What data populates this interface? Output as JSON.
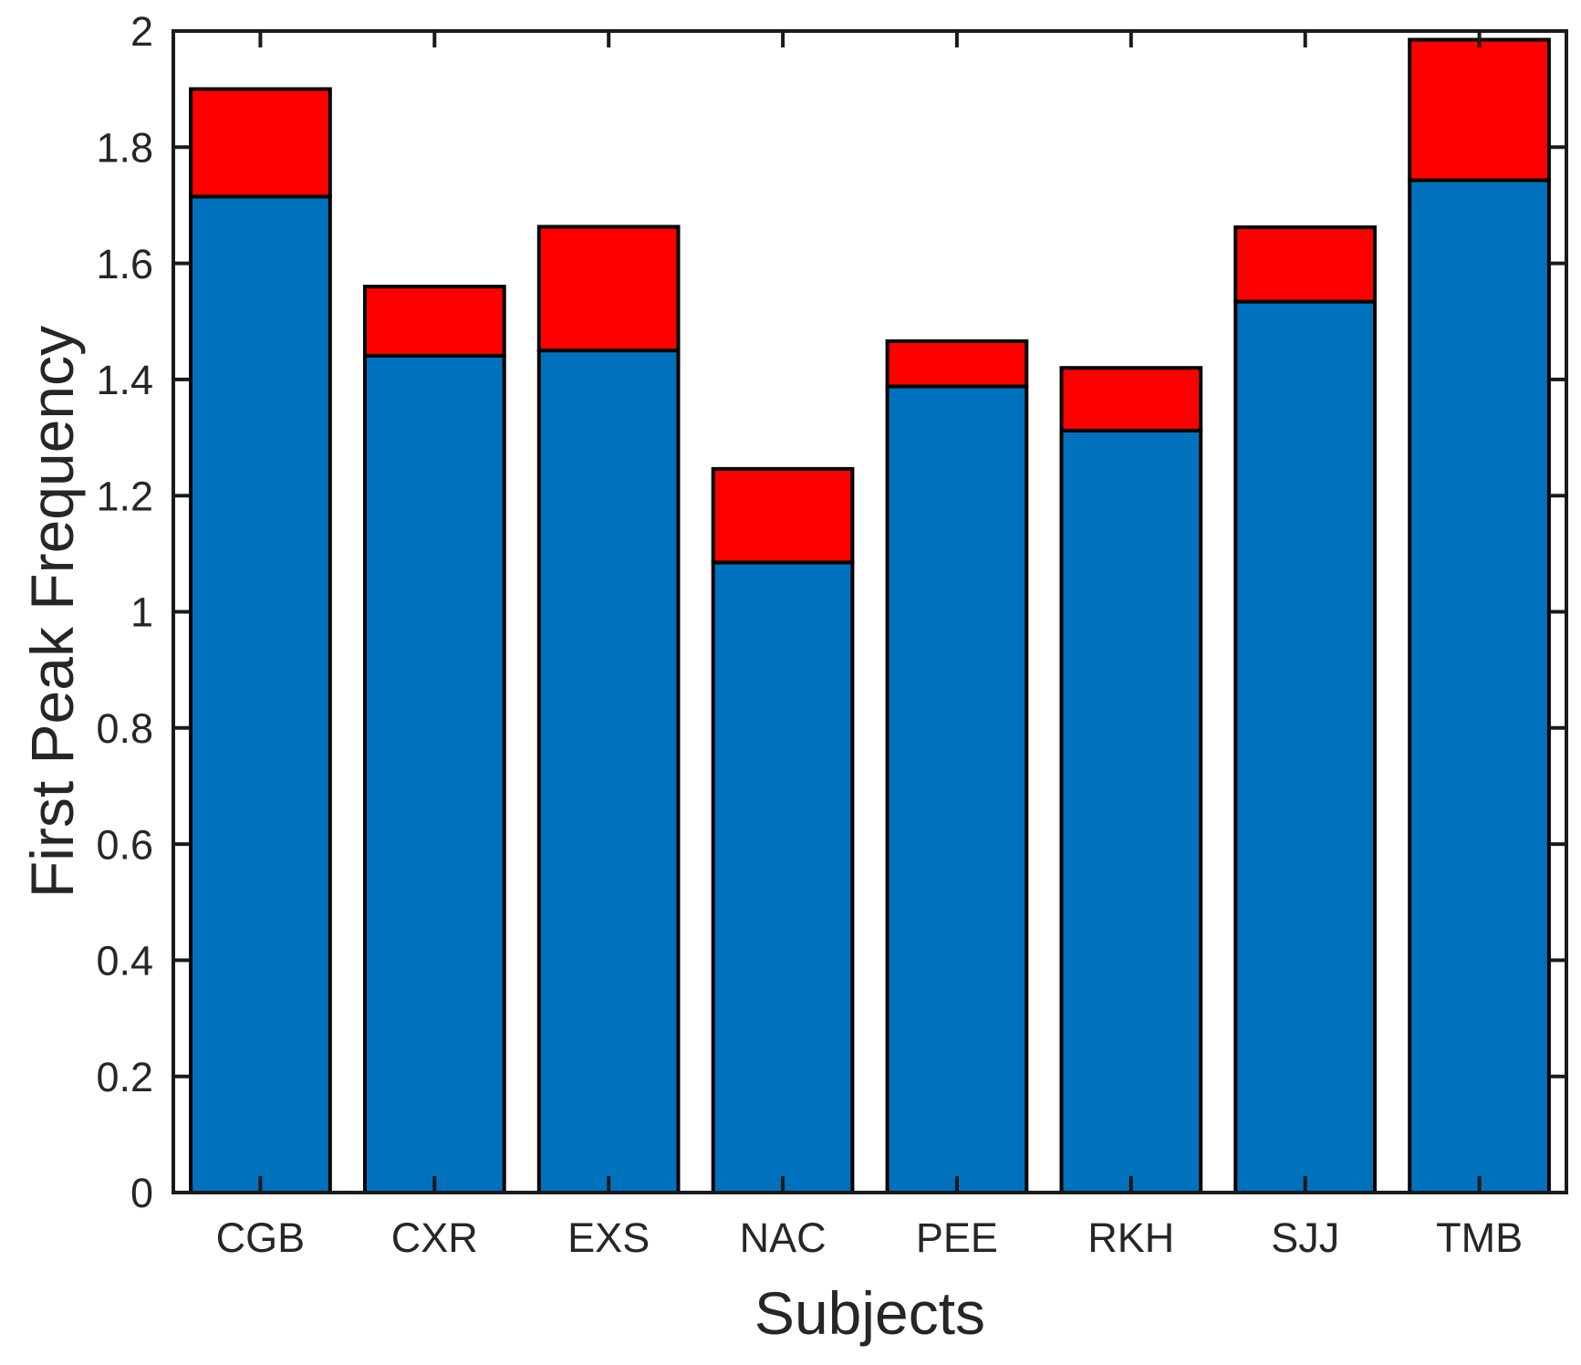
{
  "figure": {
    "background": "#FFFFFF"
  },
  "chart_data": {
    "type": "bar",
    "stacked": true,
    "title": "",
    "xlabel": "Subjects",
    "ylabel": "First Peak Frequency",
    "categories": [
      "CGB",
      "CXR",
      "EXS",
      "NAC",
      "PEE",
      "RKH",
      "SJJ",
      "TMB"
    ],
    "series": [
      {
        "name": "blue-bottom-segment",
        "color": "#0072BD",
        "values": [
          1.715,
          1.441,
          1.45,
          1.085,
          1.388,
          1.312,
          1.534,
          1.743
        ]
      },
      {
        "name": "red-top-segment",
        "color": "#FF0000",
        "values": [
          0.185,
          0.119,
          0.213,
          0.161,
          0.078,
          0.108,
          0.128,
          0.242
        ]
      }
    ],
    "stack_totals": [
      1.9,
      1.56,
      1.663,
      1.246,
      1.466,
      1.42,
      1.662,
      1.985
    ],
    "ylim": [
      0,
      2
    ],
    "yticks": [
      0,
      0.2,
      0.4,
      0.6,
      0.8,
      1,
      1.2,
      1.4,
      1.6,
      1.8,
      2
    ],
    "ytick_labels": [
      "0",
      "0.2",
      "0.4",
      "0.6",
      "0.8",
      "1",
      "1.2",
      "1.4",
      "1.6",
      "1.8",
      "2"
    ],
    "bar_width_fraction": 0.8,
    "bar_edge_color": "#000000",
    "axis_color": "#1A1A1A",
    "tick_label_color": "#262626",
    "axis_label_color": "#262626",
    "grid": false,
    "legend_position": "none",
    "tick_direction": "in",
    "box": true
  }
}
